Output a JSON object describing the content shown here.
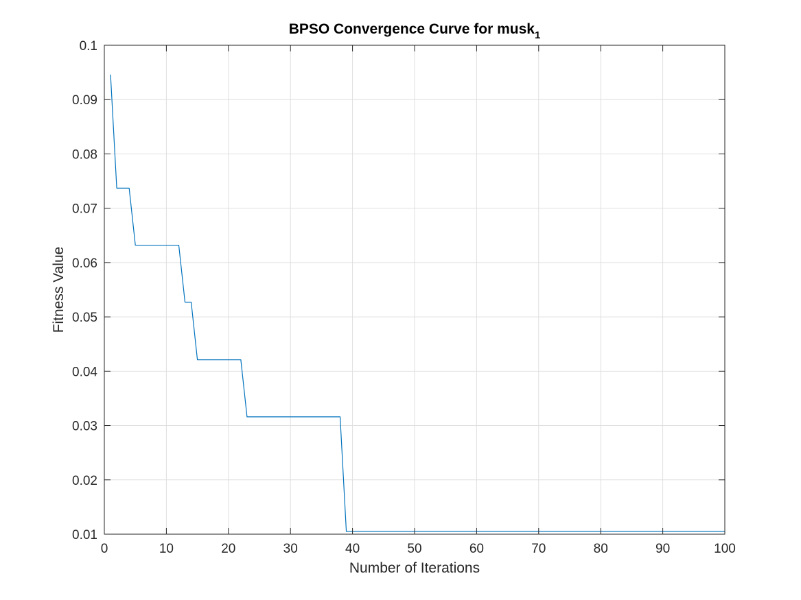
{
  "chart_data": {
    "type": "line",
    "title": "BPSO Convergence Curve for musk",
    "title_subscript": "1",
    "xlabel": "Number of Iterations",
    "ylabel": "Fitness Value",
    "xlim": [
      0,
      100
    ],
    "ylim": [
      0.01,
      0.1
    ],
    "xticks": [
      0,
      10,
      20,
      30,
      40,
      50,
      60,
      70,
      80,
      90,
      100
    ],
    "xtick_labels": [
      "0",
      "10",
      "20",
      "30",
      "40",
      "50",
      "60",
      "70",
      "80",
      "90",
      "100"
    ],
    "yticks": [
      0.01,
      0.02,
      0.03,
      0.04,
      0.05,
      0.06,
      0.07,
      0.08,
      0.09,
      0.1
    ],
    "ytick_labels": [
      "0.01",
      "0.02",
      "0.03",
      "0.04",
      "0.05",
      "0.06",
      "0.07",
      "0.08",
      "0.09",
      "0.1"
    ],
    "grid": true,
    "box": true,
    "series": [
      {
        "color": "#0072BD",
        "x": [
          1,
          2,
          3,
          4,
          5,
          6,
          7,
          8,
          9,
          10,
          11,
          12,
          13,
          14,
          15,
          16,
          17,
          18,
          19,
          20,
          21,
          22,
          23,
          24,
          25,
          26,
          27,
          28,
          29,
          30,
          31,
          32,
          33,
          34,
          35,
          36,
          37,
          38,
          39,
          40,
          41,
          42,
          43,
          44,
          45,
          46,
          47,
          48,
          49,
          50,
          51,
          52,
          53,
          54,
          55,
          56,
          57,
          58,
          59,
          60,
          61,
          62,
          63,
          64,
          65,
          66,
          67,
          68,
          69,
          70,
          71,
          72,
          73,
          74,
          75,
          76,
          77,
          78,
          79,
          80,
          81,
          82,
          83,
          84,
          85,
          86,
          87,
          88,
          89,
          90,
          91,
          92,
          93,
          94,
          95,
          96,
          97,
          98,
          99,
          100
        ],
        "y": [
          0.0946,
          0.0737,
          0.0737,
          0.0737,
          0.0632,
          0.0632,
          0.0632,
          0.0632,
          0.0632,
          0.0632,
          0.0632,
          0.0632,
          0.0527,
          0.0527,
          0.0421,
          0.0421,
          0.0421,
          0.0421,
          0.0421,
          0.0421,
          0.0421,
          0.0421,
          0.0316,
          0.0316,
          0.0316,
          0.0316,
          0.0316,
          0.0316,
          0.0316,
          0.0316,
          0.0316,
          0.0316,
          0.0316,
          0.0316,
          0.0316,
          0.0316,
          0.0316,
          0.0316,
          0.0105,
          0.0105,
          0.0105,
          0.0105,
          0.0105,
          0.0105,
          0.0105,
          0.0105,
          0.0105,
          0.0105,
          0.0105,
          0.0105,
          0.0105,
          0.0105,
          0.0105,
          0.0105,
          0.0105,
          0.0105,
          0.0105,
          0.0105,
          0.0105,
          0.0105,
          0.0105,
          0.0105,
          0.0105,
          0.0105,
          0.0105,
          0.0105,
          0.0105,
          0.0105,
          0.0105,
          0.0105,
          0.0105,
          0.0105,
          0.0105,
          0.0105,
          0.0105,
          0.0105,
          0.0105,
          0.0105,
          0.0105,
          0.0105,
          0.0105,
          0.0105,
          0.0105,
          0.0105,
          0.0105,
          0.0105,
          0.0105,
          0.0105,
          0.0105,
          0.0105,
          0.0105,
          0.0105,
          0.0105,
          0.0105,
          0.0105,
          0.0105,
          0.0105,
          0.0105,
          0.0105,
          0.0105
        ]
      }
    ]
  }
}
